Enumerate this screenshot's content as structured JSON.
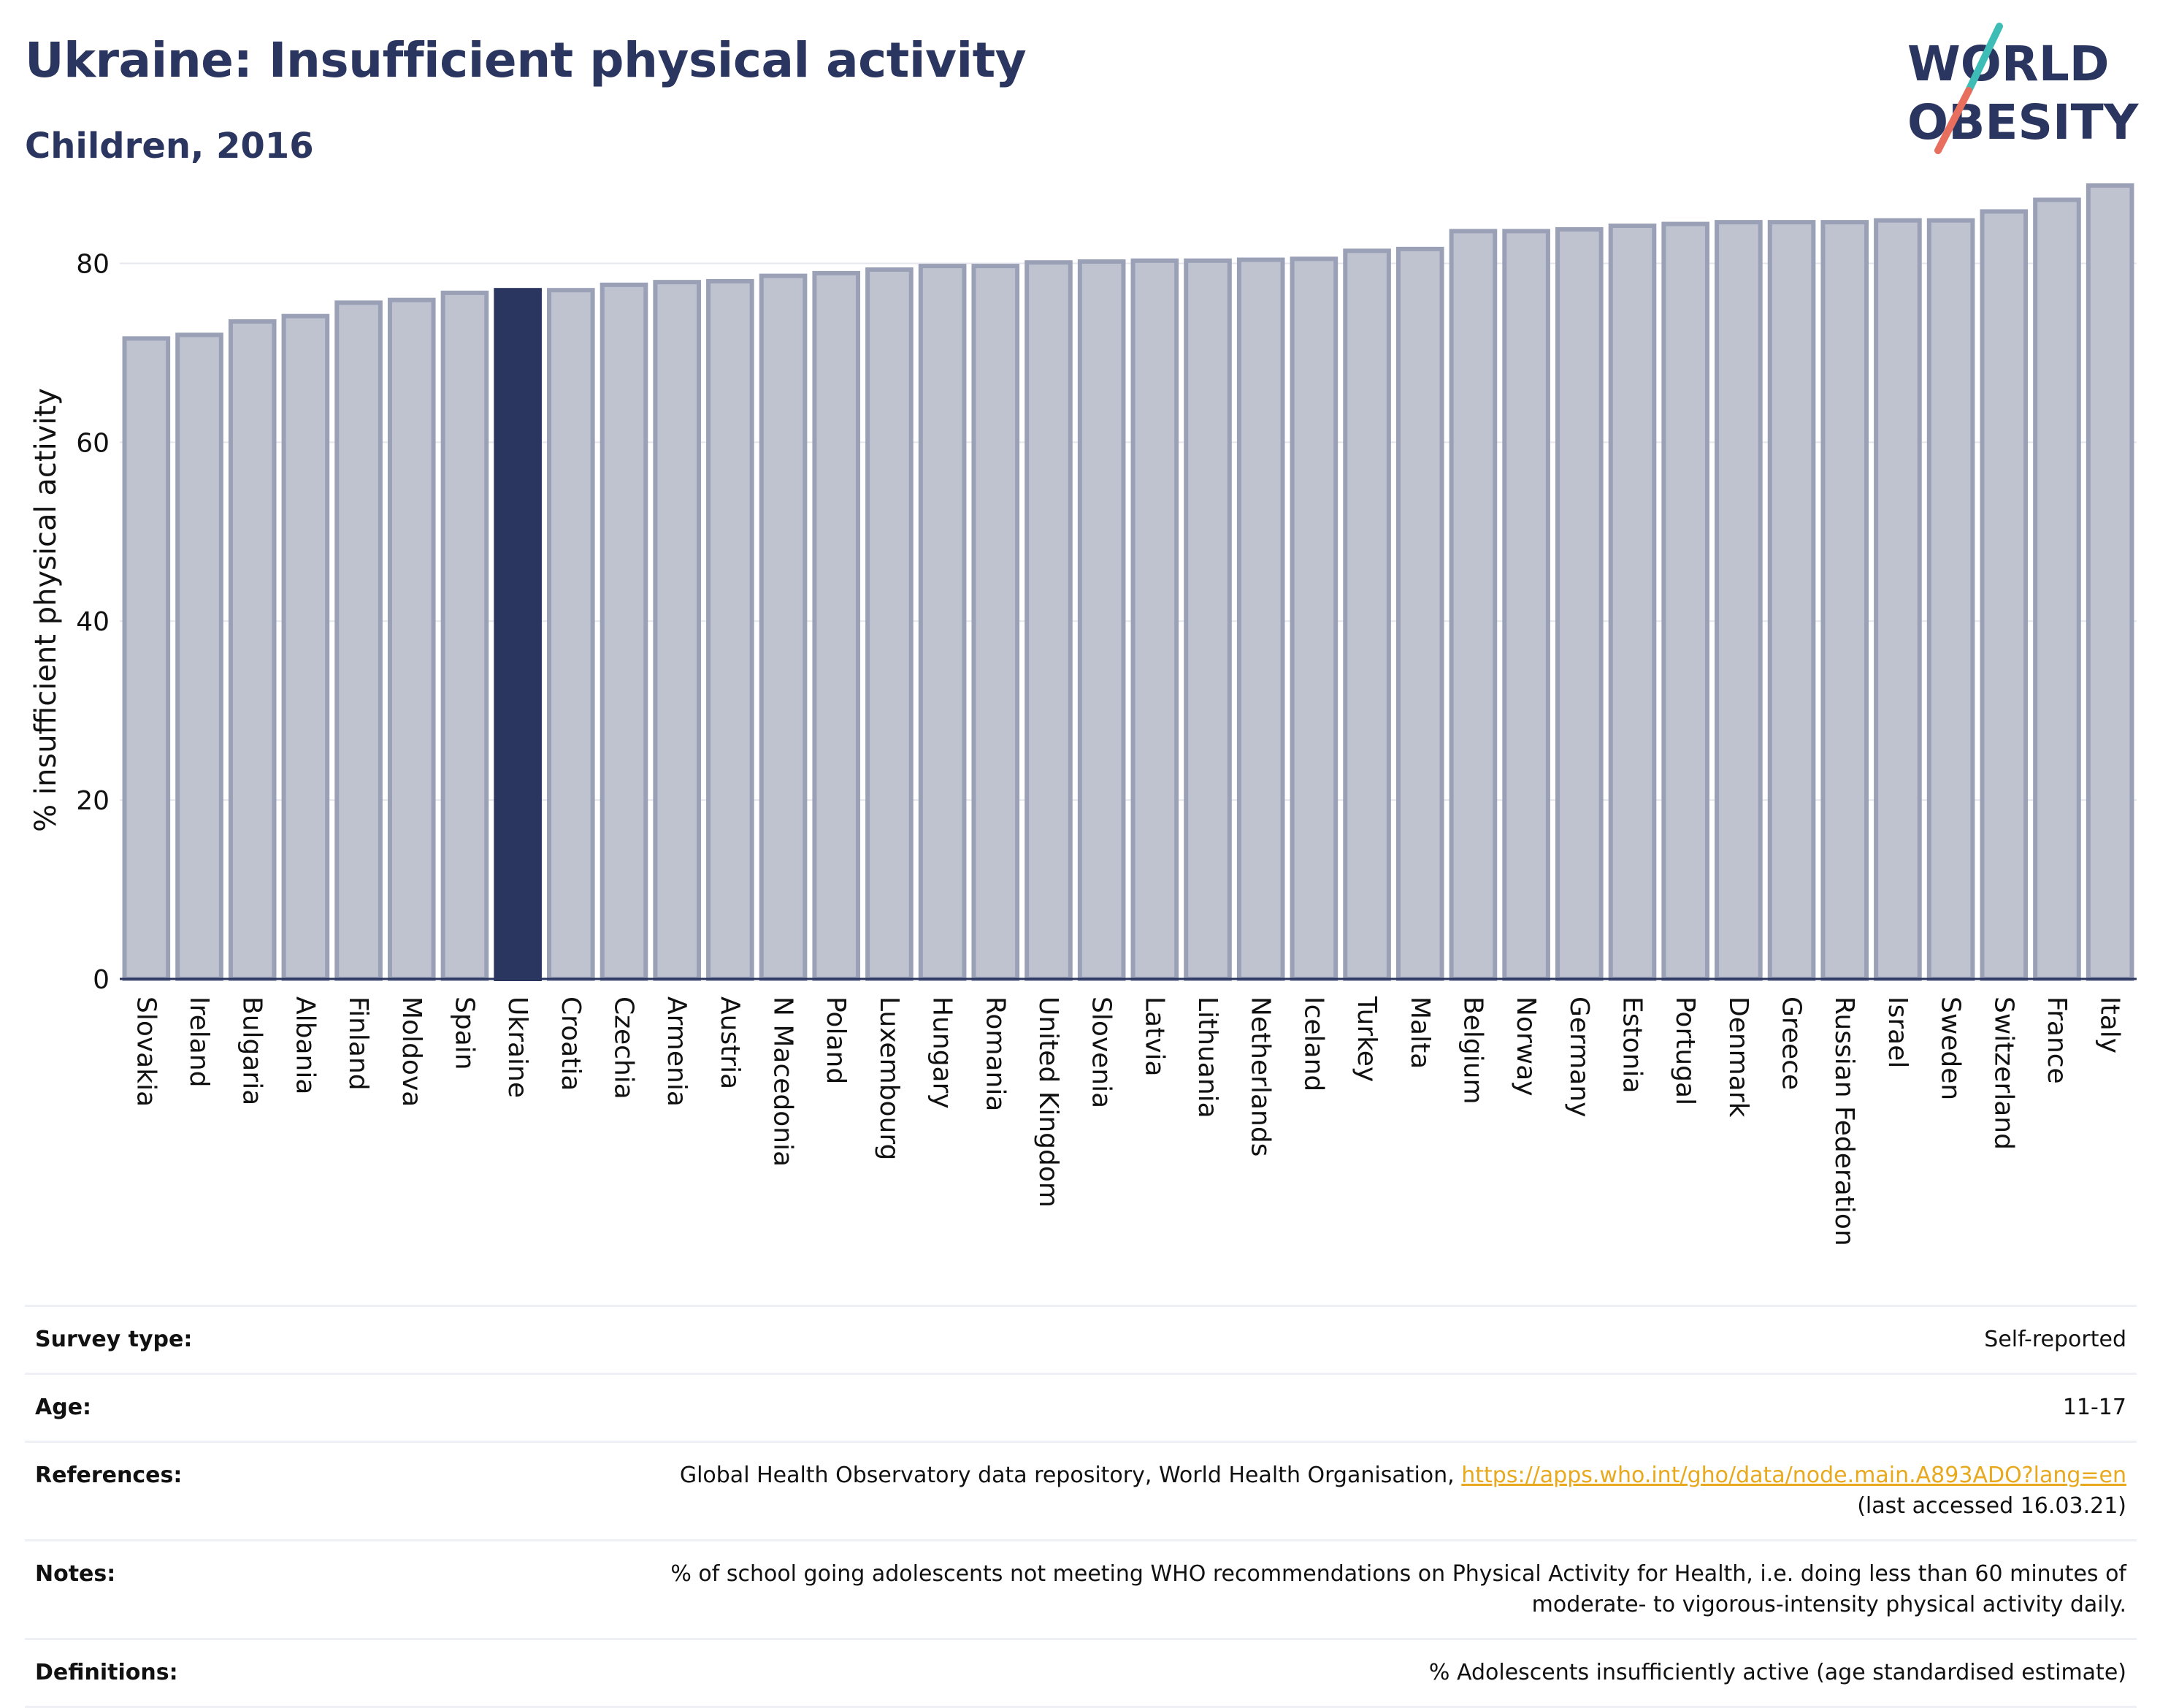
{
  "header": {
    "title": "Ukraine: Insufficient physical activity",
    "subtitle": "Children, 2016"
  },
  "logo": {
    "line1": "WORLD",
    "line2": "OBESITY"
  },
  "colors": {
    "highlight_bar": "#2a3560",
    "bar_fill": "#bfc3d0",
    "bar_stroke": "#9aa0b6",
    "title": "#2a3560",
    "link": "#e8a91e",
    "logo_teal": "#3dbdb5",
    "logo_coral": "#e86f5e"
  },
  "chart_data": {
    "type": "bar",
    "title": "",
    "xlabel": "",
    "ylabel": "% insufficient physical activity",
    "ylim": [
      0,
      90
    ],
    "yticks": [
      0,
      20,
      40,
      60,
      80
    ],
    "grid": true,
    "highlight": "Ukraine",
    "categories": [
      "Slovakia",
      "Ireland",
      "Bulgaria",
      "Albania",
      "Finland",
      "Moldova",
      "Spain",
      "Ukraine",
      "Croatia",
      "Czechia",
      "Armenia",
      "Austria",
      "N Macedonia",
      "Poland",
      "Luxembourg",
      "Hungary",
      "Romania",
      "United Kingdom",
      "Slovenia",
      "Latvia",
      "Lithuania",
      "Netherlands",
      "Iceland",
      "Turkey",
      "Malta",
      "Belgium",
      "Norway",
      "Germany",
      "Estonia",
      "Portugal",
      "Denmark",
      "Greece",
      "Russian Federation",
      "Israel",
      "Sweden",
      "Switzerland",
      "France",
      "Italy"
    ],
    "values": [
      71.6,
      72.0,
      73.5,
      74.1,
      75.6,
      75.9,
      76.7,
      77.0,
      77.0,
      77.6,
      77.9,
      78.0,
      78.6,
      78.9,
      79.3,
      79.7,
      79.7,
      80.1,
      80.2,
      80.3,
      80.3,
      80.4,
      80.5,
      81.4,
      81.6,
      83.6,
      83.6,
      83.8,
      84.2,
      84.4,
      84.6,
      84.6,
      84.6,
      84.8,
      84.8,
      85.8,
      87.1,
      88.7
    ]
  },
  "info": {
    "rows": [
      {
        "key": "Survey type:",
        "value": "Self-reported"
      },
      {
        "key": "Age:",
        "value": "11-17"
      },
      {
        "key": "References:",
        "value": "Global Health Observatory data repository, World Health Organisation,",
        "link": "https://apps.who.int/gho/data/node.main.A893ADO?lang=en",
        "value2": "(last accessed 16.03.21)"
      },
      {
        "key": "Notes:",
        "value": "% of school going adolescents not meeting WHO recommendations on Physical Activity for Health, i.e. doing less than 60 minutes of",
        "value2": "moderate- to vigorous-intensity physical activity daily."
      },
      {
        "key": "Definitions:",
        "value": "% Adolescents insufficiently active (age standardised estimate)"
      }
    ]
  }
}
